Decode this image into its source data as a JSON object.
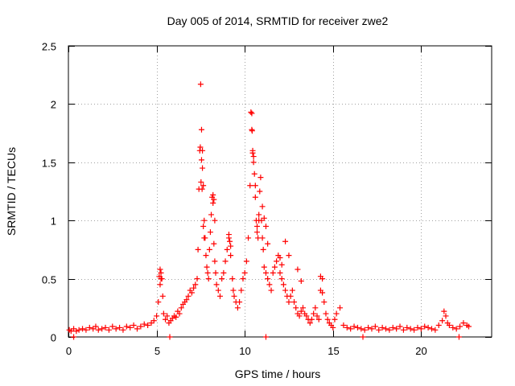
{
  "chart_data": {
    "type": "scatter",
    "title": "Day 005 of 2014, SRMTID for receiver zwe2",
    "xlabel": "GPS time / hours",
    "ylabel": "SRMTID / TECUs",
    "xlim": [
      0,
      24
    ],
    "ylim": [
      0,
      2.5
    ],
    "xticks": [
      0,
      5,
      10,
      15,
      20
    ],
    "yticks": [
      0,
      0.5,
      1,
      1.5,
      2,
      2.5
    ],
    "xtick_labels": [
      "0",
      "5",
      "10",
      "15",
      "20"
    ],
    "ytick_labels": [
      "0",
      "0.5",
      "1",
      "1.5",
      "2",
      "2.5"
    ],
    "grid": true,
    "marker_color": "#ff0000",
    "series": [
      {
        "name": "SRMTID",
        "marker": "plus",
        "x": [
          0.05,
          0.15,
          0.3,
          0.45,
          0.6,
          0.8,
          1.0,
          1.2,
          1.4,
          1.55,
          1.7,
          1.9,
          2.1,
          2.3,
          2.5,
          2.7,
          2.9,
          3.1,
          3.3,
          3.5,
          3.7,
          3.9,
          4.1,
          4.3,
          4.5,
          4.7,
          4.85,
          5.0,
          5.1,
          5.2,
          5.25,
          5.3,
          5.35,
          5.4,
          5.5,
          5.6,
          5.7,
          5.8,
          5.9,
          6.0,
          6.1,
          6.2,
          6.3,
          6.4,
          6.5,
          6.6,
          6.7,
          6.8,
          6.9,
          7.0,
          7.1,
          7.2,
          7.3,
          7.35,
          7.4,
          7.45,
          7.5,
          7.55,
          7.6,
          7.65,
          7.7,
          7.75,
          7.8,
          7.85,
          7.9,
          7.95,
          8.0,
          8.05,
          8.1,
          8.15,
          8.2,
          8.25,
          8.3,
          8.35,
          8.4,
          8.5,
          8.6,
          8.7,
          8.8,
          8.9,
          9.0,
          9.1,
          9.2,
          9.3,
          9.35,
          9.4,
          9.5,
          9.6,
          9.7,
          9.8,
          9.9,
          10.0,
          10.1,
          10.2,
          10.3,
          10.35,
          10.4,
          10.45,
          10.5,
          10.55,
          10.6,
          10.65,
          10.7,
          10.75,
          10.8,
          10.85,
          10.9,
          10.95,
          11.0,
          11.05,
          11.1,
          11.2,
          11.3,
          11.4,
          11.5,
          11.6,
          11.7,
          11.8,
          11.9,
          12.0,
          12.1,
          12.2,
          12.3,
          12.4,
          12.5,
          12.6,
          12.7,
          12.8,
          12.9,
          13.0,
          13.1,
          13.2,
          13.3,
          13.4,
          13.5,
          13.6,
          13.7,
          13.8,
          13.9,
          14.0,
          14.1,
          14.2,
          14.3,
          14.4,
          14.5,
          14.6,
          14.7,
          14.8,
          14.9,
          15.0,
          15.1,
          15.2,
          15.4,
          15.6,
          15.8,
          16.0,
          16.2,
          16.4,
          16.6,
          16.8,
          17.0,
          17.2,
          17.4,
          17.6,
          17.8,
          18.0,
          18.2,
          18.4,
          18.6,
          18.8,
          19.0,
          19.2,
          19.4,
          19.6,
          19.8,
          20.0,
          20.2,
          20.4,
          20.6,
          20.8,
          21.0,
          21.2,
          21.3,
          21.4,
          21.5,
          21.6,
          21.8,
          22.0,
          22.2,
          22.4,
          22.6,
          22.7,
          0.3,
          5.75,
          11.2,
          16.7,
          22.15,
          7.48,
          7.52,
          7.55,
          7.58,
          10.4,
          10.42,
          10.45,
          10.5,
          10.6,
          10.7,
          10.8,
          11.0,
          11.1,
          11.2,
          11.3,
          8.2,
          8.25,
          8.3,
          7.6,
          7.65,
          7.7,
          12.3,
          12.5,
          14.3,
          14.4,
          5.15,
          5.2,
          5.25,
          9.1,
          9.15,
          9.2,
          13.0,
          13.2,
          12.0,
          12.1
        ],
        "y": [
          0.06,
          0.05,
          0.07,
          0.05,
          0.06,
          0.07,
          0.06,
          0.08,
          0.07,
          0.09,
          0.06,
          0.07,
          0.08,
          0.06,
          0.09,
          0.07,
          0.08,
          0.06,
          0.09,
          0.08,
          0.1,
          0.07,
          0.09,
          0.11,
          0.1,
          0.12,
          0.14,
          0.18,
          0.3,
          0.45,
          0.55,
          0.5,
          0.35,
          0.2,
          0.15,
          0.18,
          0.12,
          0.14,
          0.16,
          0.18,
          0.17,
          0.22,
          0.2,
          0.25,
          0.28,
          0.3,
          0.32,
          0.35,
          0.4,
          0.38,
          0.42,
          0.45,
          0.5,
          0.75,
          1.27,
          1.6,
          2.17,
          1.78,
          1.6,
          1.3,
          1.0,
          0.85,
          0.7,
          0.6,
          0.55,
          0.5,
          0.75,
          0.9,
          1.05,
          1.2,
          1.15,
          0.8,
          0.65,
          0.55,
          0.45,
          0.4,
          0.35,
          0.5,
          0.55,
          0.65,
          0.75,
          0.85,
          0.7,
          0.5,
          0.4,
          0.35,
          0.3,
          0.25,
          0.3,
          0.4,
          0.5,
          0.55,
          0.65,
          0.85,
          1.3,
          1.93,
          1.78,
          1.6,
          1.55,
          1.4,
          1.2,
          1.0,
          0.9,
          0.85,
          1.05,
          1.25,
          1.37,
          1.0,
          0.85,
          0.75,
          0.6,
          0.55,
          0.5,
          0.45,
          0.4,
          0.55,
          0.6,
          0.65,
          0.7,
          0.55,
          0.5,
          0.45,
          0.4,
          0.35,
          0.3,
          0.35,
          0.4,
          0.3,
          0.25,
          0.2,
          0.18,
          0.22,
          0.25,
          0.2,
          0.18,
          0.15,
          0.12,
          0.15,
          0.2,
          0.25,
          0.18,
          0.15,
          0.4,
          0.5,
          0.3,
          0.2,
          0.15,
          0.12,
          0.1,
          0.08,
          0.15,
          0.2,
          0.25,
          0.1,
          0.08,
          0.07,
          0.09,
          0.08,
          0.07,
          0.06,
          0.08,
          0.07,
          0.09,
          0.06,
          0.08,
          0.07,
          0.06,
          0.08,
          0.07,
          0.09,
          0.06,
          0.08,
          0.07,
          0.06,
          0.08,
          0.07,
          0.09,
          0.08,
          0.07,
          0.06,
          0.1,
          0.14,
          0.22,
          0.18,
          0.12,
          0.1,
          0.08,
          0.07,
          0.09,
          0.12,
          0.1,
          0.09,
          0.0,
          0.0,
          0.0,
          0.0,
          0.0,
          1.63,
          1.33,
          1.52,
          1.27,
          1.92,
          1.77,
          1.58,
          1.5,
          1.3,
          0.95,
          1.0,
          1.12,
          1.02,
          0.95,
          0.8,
          1.22,
          1.18,
          1.0,
          1.45,
          0.95,
          0.85,
          0.82,
          0.7,
          0.52,
          0.38,
          0.52,
          0.58,
          0.5,
          0.88,
          0.82,
          0.78,
          0.58,
          0.48,
          0.68,
          0.62
        ]
      }
    ]
  }
}
